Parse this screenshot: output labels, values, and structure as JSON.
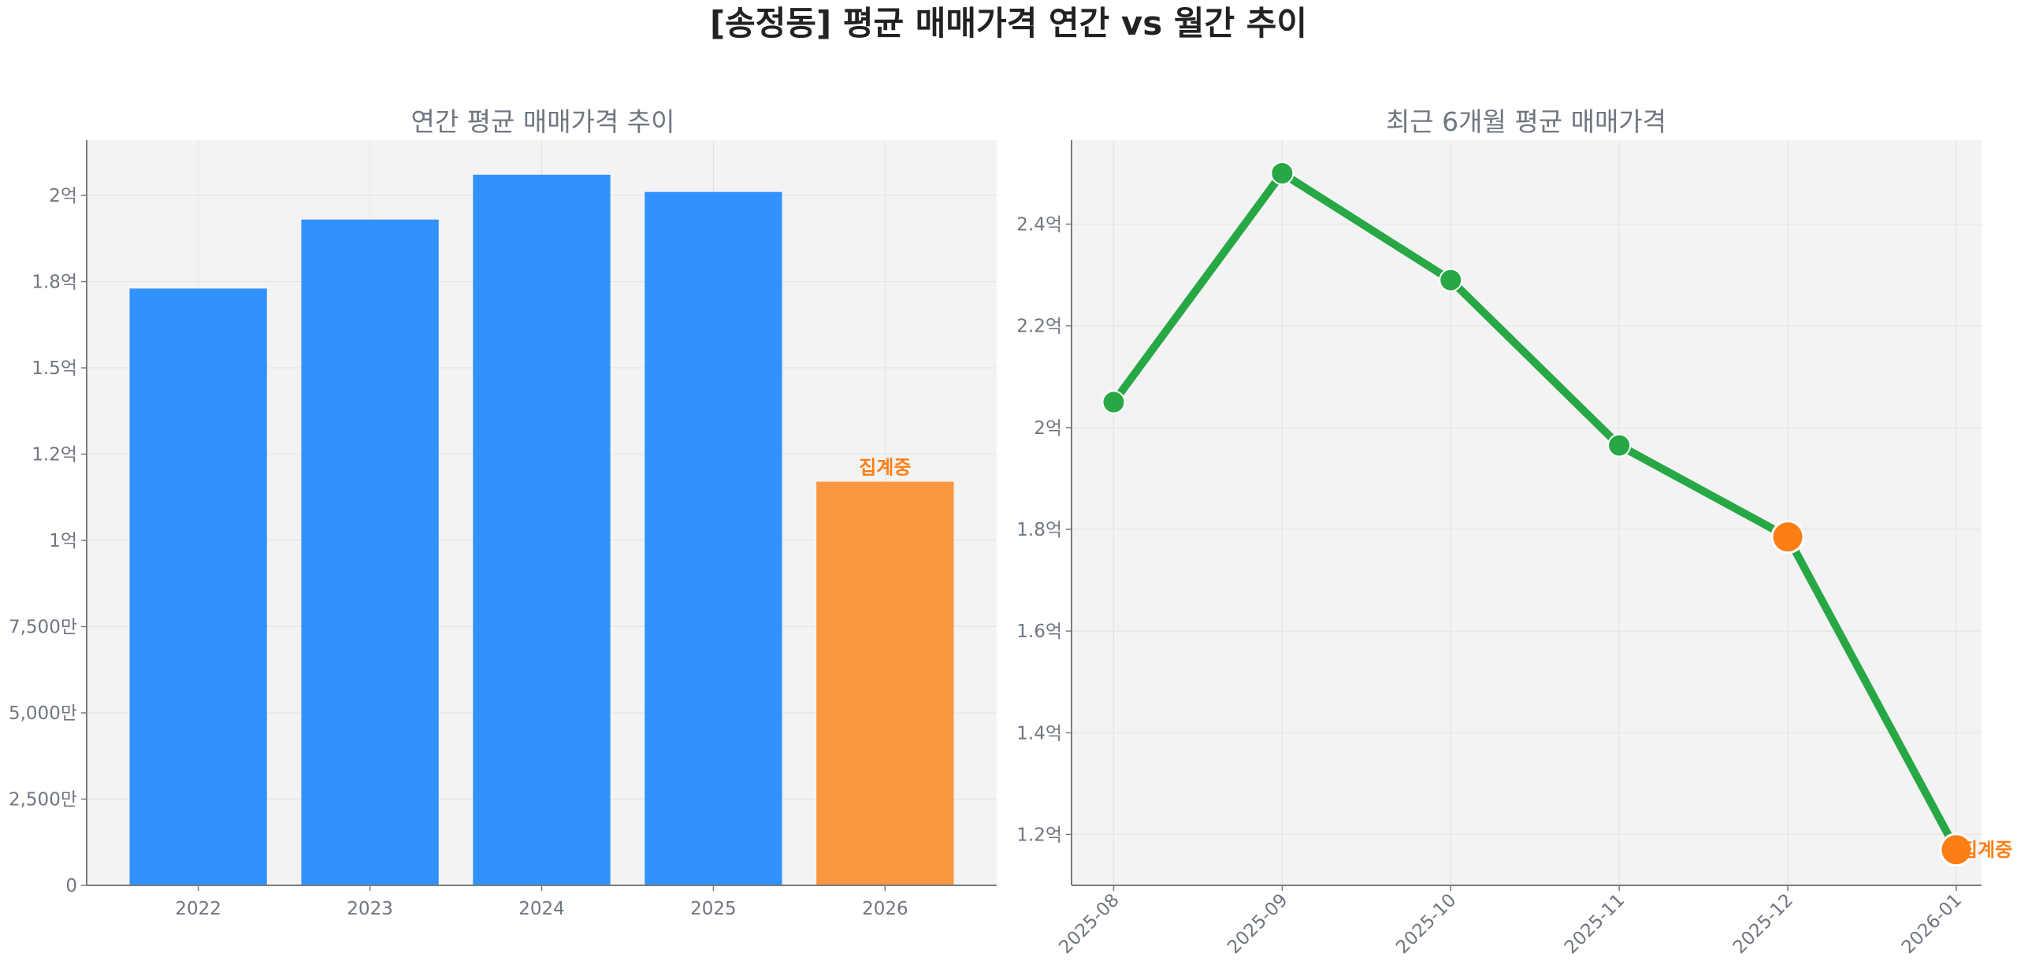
{
  "title": "[송정동] 평균 매매가격 연간 vs 월간 추이",
  "colors": {
    "bar": "#3192FC",
    "bar_highlight": "#F99740",
    "line": "#28A745",
    "marker_highlight": "#FD7E14",
    "label_highlight": "#FD7E14"
  },
  "chart_data": [
    {
      "type": "bar",
      "title": "연간 평균 매매가격 추이",
      "categories": [
        "2022",
        "2023",
        "2024",
        "2025",
        "2026"
      ],
      "values": [
        173000000,
        193000000,
        206000000,
        201000000,
        117000000
      ],
      "highlight": [
        false,
        false,
        false,
        false,
        true
      ],
      "annotations": [
        {
          "category": "2026",
          "text": "집계중"
        }
      ],
      "ylim": [
        0,
        216000000
      ],
      "yticks": [
        0,
        25000000,
        50000000,
        75000000,
        100000000,
        125000000,
        150000000,
        175000000,
        200000000
      ],
      "ytick_labels": [
        "0",
        "2,500만",
        "5,000만",
        "7,500만",
        "1억",
        "1.2억",
        "1.5억",
        "1.8억",
        "2억"
      ],
      "xlabel": "",
      "ylabel": "",
      "grid": true
    },
    {
      "type": "line",
      "title": "최근 6개월 평균 매매가격",
      "x": [
        "2025-08",
        "2025-09",
        "2025-10",
        "2025-11",
        "2025-12",
        "2026-01"
      ],
      "values": [
        205000000,
        250000000,
        229000000,
        196500000,
        178500000,
        117000000
      ],
      "highlight": [
        false,
        false,
        false,
        false,
        true,
        true
      ],
      "annotations": [
        {
          "x": "2026-01",
          "text": "집계중"
        }
      ],
      "ylim": [
        110000000,
        256500000
      ],
      "yticks": [
        120000000,
        140000000,
        160000000,
        180000000,
        200000000,
        220000000,
        240000000
      ],
      "ytick_labels": [
        "1.2억",
        "1.4억",
        "1.6억",
        "1.8억",
        "2억",
        "2.2억",
        "2.4억"
      ],
      "xlabel": "",
      "ylabel": "",
      "grid": true
    }
  ]
}
